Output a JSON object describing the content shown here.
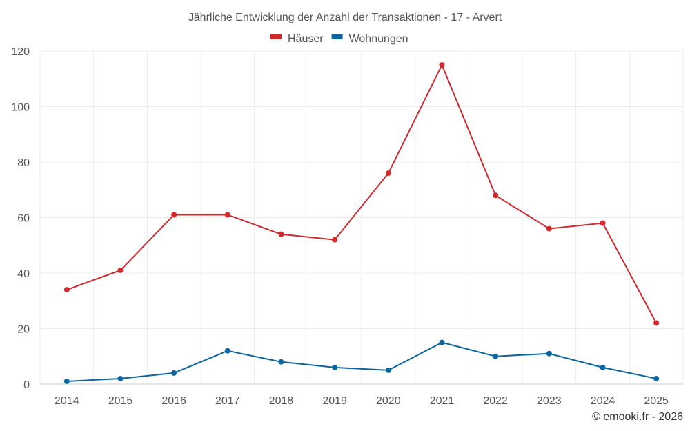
{
  "chart_data": {
    "type": "line",
    "title": "Jährliche Entwicklung der Anzahl der Transaktionen - 17 - Arvert",
    "xlabel": "",
    "ylabel": "",
    "categories": [
      "2014",
      "2015",
      "2016",
      "2017",
      "2018",
      "2019",
      "2020",
      "2021",
      "2022",
      "2023",
      "2024",
      "2025"
    ],
    "ylim": [
      0,
      120
    ],
    "yticks": [
      0,
      20,
      40,
      60,
      80,
      100,
      120
    ],
    "grid": true,
    "legend_position": "top-center",
    "series": [
      {
        "name": "Häuser",
        "color": "#d0282c",
        "values": [
          34,
          41,
          61,
          61,
          54,
          52,
          76,
          115,
          68,
          56,
          58,
          22
        ]
      },
      {
        "name": "Wohnungen",
        "color": "#0a66a0",
        "values": [
          1,
          2,
          4,
          12,
          8,
          6,
          5,
          15,
          10,
          11,
          6,
          2
        ]
      }
    ]
  },
  "credit": "© emooki.fr - 2026"
}
